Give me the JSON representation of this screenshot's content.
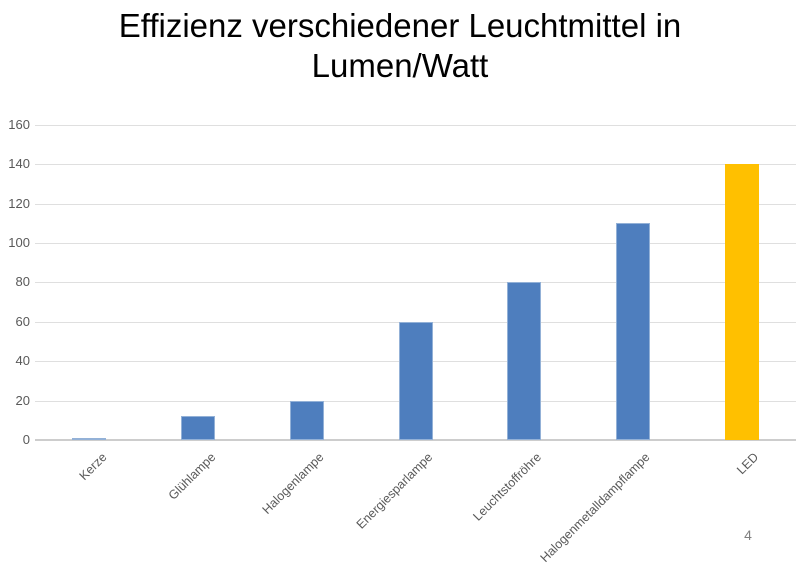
{
  "page": {
    "background": "#FFFFFF",
    "page_number": "4"
  },
  "chart_data": {
    "type": "bar",
    "title": "Effizienz verschiedener Leuchtmittel in Lumen/Watt",
    "categories": [
      "Kerze",
      "Glühlampe",
      "Halogenlampe",
      "Energiesparlampe",
      "Leuchtstoffröhre",
      "Halogenmetalldampflampe",
      "LED"
    ],
    "values": [
      0.3,
      12,
      20,
      60,
      80,
      110,
      140
    ],
    "xlabel": "",
    "ylabel": "",
    "ylim": [
      0,
      160
    ],
    "yticks": [
      0,
      20,
      40,
      60,
      80,
      100,
      120,
      140,
      160
    ],
    "grid": true,
    "legend_position": "none",
    "bar_fill_colors": [
      "#4E7EBE",
      "#4E7EBE",
      "#4E7EBE",
      "#4E7EBE",
      "#4E7EBE",
      "#4E7EBE",
      "#FFC000"
    ],
    "bar_border_colors": [
      "#93B1D7",
      "#93B1D7",
      "#93B1D7",
      "#93B1D7",
      "#93B1D7",
      "#93B1D7",
      "#FFC000"
    ],
    "gridline_color": "#DFDFDF",
    "axis_line_color": "#CDCDCD",
    "tick_label_color": "#595959",
    "page_number_color": "#808080",
    "title_color": "#000000"
  }
}
